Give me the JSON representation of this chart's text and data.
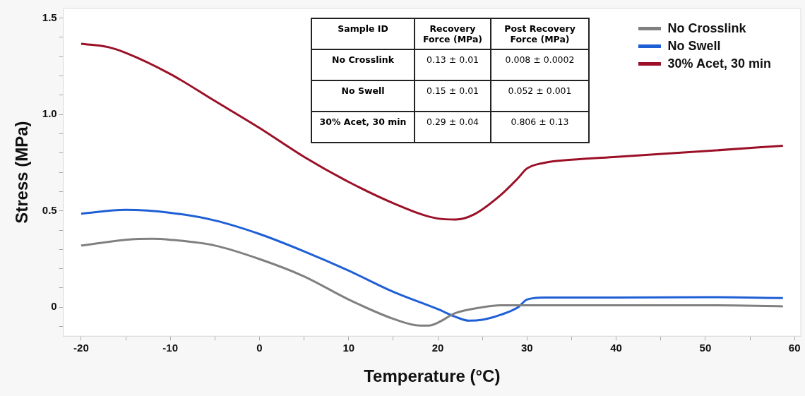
{
  "chart_data": {
    "type": "line",
    "xlabel": "Temperature (°C)",
    "ylabel": "Stress (MPa)",
    "xlim": [
      -22,
      60.7
    ],
    "ylim": [
      -0.15,
      1.55
    ],
    "xticks": [
      -20,
      {
        "value": -15,
        "label": null
      },
      -10,
      {
        "value": -5,
        "label": null
      },
      0,
      {
        "value": 5,
        "label": null
      },
      10,
      {
        "value": 15,
        "label": null
      },
      20,
      {
        "value": 25,
        "label": null
      },
      30,
      {
        "value": 35,
        "label": null
      },
      40,
      {
        "value": 45,
        "label": null
      },
      50,
      {
        "value": 55,
        "label": null
      },
      60
    ],
    "yticks": [
      {
        "value": -0.1,
        "label": null
      },
      0,
      {
        "value": 0.1,
        "label": null
      },
      {
        "value": 0.2,
        "label": null
      },
      {
        "value": 0.3,
        "label": null
      },
      {
        "value": 0.4,
        "label": null
      },
      {
        "value": 0.5,
        "label": "0.5"
      },
      {
        "value": 0.6,
        "label": null
      },
      {
        "value": 0.7,
        "label": null
      },
      {
        "value": 0.8,
        "label": null
      },
      {
        "value": 0.9,
        "label": null
      },
      {
        "value": 1.0,
        "label": "1.0"
      },
      {
        "value": 1.1,
        "label": null
      },
      {
        "value": 1.2,
        "label": null
      },
      {
        "value": 1.3,
        "label": null
      },
      {
        "value": 1.4,
        "label": null
      },
      {
        "value": 1.5,
        "label": "1.5"
      }
    ],
    "grid": false,
    "legend": "top right",
    "marker": "none",
    "line_style": "solid",
    "series": [
      {
        "name": "No Crosslink",
        "color": "#808080",
        "x": [
          -20,
          -15,
          -12,
          -10,
          -5,
          0,
          5,
          10,
          15,
          18,
          19,
          20,
          22,
          25,
          27,
          30,
          40,
          50,
          58.7
        ],
        "values": [
          0.32,
          0.35,
          0.355,
          0.35,
          0.32,
          0.25,
          0.16,
          0.04,
          -0.06,
          -0.095,
          -0.095,
          -0.08,
          -0.03,
          0.0,
          0.01,
          0.01,
          0.01,
          0.01,
          0.005
        ]
      },
      {
        "name": "No Swell",
        "color": "#1f5fd6",
        "x": [
          -20,
          -15,
          -10,
          -5,
          0,
          5,
          10,
          15,
          20,
          22,
          23.5,
          25,
          27,
          29,
          30,
          32,
          40,
          50,
          58.7
        ],
        "values": [
          0.485,
          0.505,
          0.49,
          0.45,
          0.38,
          0.29,
          0.19,
          0.08,
          -0.01,
          -0.05,
          -0.07,
          -0.065,
          -0.04,
          0.0,
          0.04,
          0.05,
          0.05,
          0.052,
          0.048
        ]
      },
      {
        "name": "30% Acet, 30 min",
        "color": "#9b1027",
        "x": [
          -20,
          -17,
          -15,
          -10,
          -5,
          0,
          5,
          10,
          15,
          20,
          22,
          24,
          27,
          29,
          30,
          32,
          35,
          40,
          50,
          58.7
        ],
        "values": [
          1.367,
          1.35,
          1.32,
          1.21,
          1.07,
          0.93,
          0.78,
          0.65,
          0.54,
          0.46,
          0.455,
          0.48,
          0.58,
          0.67,
          0.72,
          0.75,
          0.765,
          0.78,
          0.81,
          0.838
        ]
      }
    ],
    "annotations": [
      "Sample ID",
      "Recovery Force (MPa)",
      "Post Recovery Force (MPa)",
      "No Crosslink",
      "0.13 ± 0.01",
      "0.008 ± 0.0002",
      "No Swell",
      "0.15 ± 0.01",
      "0.052 ± 0.001",
      "30% Acet, 30 min",
      "0.29 ± 0.04",
      "0.806 ± 0.13"
    ]
  }
}
